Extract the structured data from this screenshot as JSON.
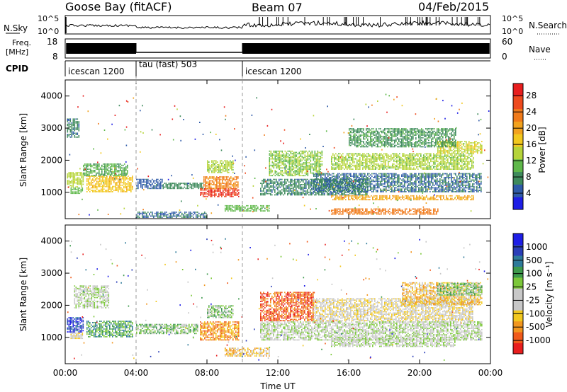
{
  "header": {
    "station": "Goose Bay (fitACF)",
    "beam": "Beam 07",
    "date": "04/Feb/2015"
  },
  "panels": {
    "nsky": {
      "label": "N.Sky",
      "tick_top": "10^5",
      "tick_bottom": "10^0",
      "right_label": "N.Search"
    },
    "freq": {
      "label_line1": "Freq.",
      "label_line2": "[MHz]",
      "left_ticks": [
        "18",
        "8"
      ],
      "right_ticks": [
        "60",
        "0"
      ],
      "right_label": "Nave"
    },
    "cpid": {
      "label": "CPID",
      "segments": [
        {
          "label": "icescan 1200",
          "start_hour": 0,
          "end_hour": 4
        },
        {
          "label": "tau (fast) 503",
          "start_hour": 4,
          "end_hour": 10
        },
        {
          "label": "icescan 1200",
          "start_hour": 10,
          "end_hour": 24
        }
      ]
    }
  },
  "chart_data": [
    {
      "type": "heatmap",
      "panel": "power",
      "ylabel": "Slant Range [km]",
      "ytick_labels": [
        "1000",
        "2000",
        "3000",
        "4000"
      ],
      "y_ticks": [
        1000,
        2000,
        3000,
        4000
      ],
      "ylim": [
        180,
        4500
      ],
      "xlim": [
        0,
        24
      ],
      "colorbar": {
        "label": "Power [dB]",
        "tick_labels": [
          "4",
          "8",
          "12",
          "16",
          "20",
          "24",
          "28"
        ],
        "ticks": [
          4,
          8,
          12,
          16,
          20,
          24,
          28
        ],
        "range": [
          0,
          31
        ],
        "colors": [
          "#1e1ee6",
          "#2e5aa8",
          "#3e8a5c",
          "#5fb84a",
          "#b6d43a",
          "#f2c81e",
          "#f2a21e",
          "#f07a1a",
          "#ee4a1e",
          "#e81e1e"
        ]
      },
      "regions": [
        {
          "x0": 0.1,
          "x1": 1.0,
          "y0": 1150,
          "y1": 1600,
          "value": 14
        },
        {
          "x0": 0.3,
          "x1": 1.0,
          "y0": 950,
          "y1": 1150,
          "value": 10
        },
        {
          "x0": 1.2,
          "x1": 3.8,
          "y0": 1000,
          "y1": 1500,
          "value": 18
        },
        {
          "x0": 1.0,
          "x1": 3.5,
          "y0": 1500,
          "y1": 1900,
          "value": 9
        },
        {
          "x0": 4.0,
          "x1": 5.5,
          "y0": 1100,
          "y1": 1400,
          "value": 4
        },
        {
          "x0": 5.5,
          "x1": 7.8,
          "y0": 1100,
          "y1": 1300,
          "value": 7
        },
        {
          "x0": 7.6,
          "x1": 9.8,
          "y0": 850,
          "y1": 1100,
          "value": 29
        },
        {
          "x0": 7.8,
          "x1": 9.8,
          "y0": 1100,
          "y1": 1500,
          "value": 23
        },
        {
          "x0": 8.0,
          "x1": 9.5,
          "y0": 1600,
          "y1": 2000,
          "value": 13
        },
        {
          "x0": 9.0,
          "x1": 11.5,
          "y0": 400,
          "y1": 600,
          "value": 10
        },
        {
          "x0": 4.0,
          "x1": 8.0,
          "y0": 200,
          "y1": 400,
          "value": 5
        },
        {
          "x0": 11.0,
          "x1": 17.0,
          "y0": 900,
          "y1": 1400,
          "value": 6
        },
        {
          "x0": 11.5,
          "x1": 14.5,
          "y0": 1500,
          "y1": 2300,
          "value": 12
        },
        {
          "x0": 14.0,
          "x1": 23.5,
          "y0": 1000,
          "y1": 1600,
          "value": 5
        },
        {
          "x0": 15.0,
          "x1": 23.0,
          "y0": 1700,
          "y1": 2200,
          "value": 13
        },
        {
          "x0": 15.0,
          "x1": 23.0,
          "y0": 750,
          "y1": 900,
          "value": 20
        },
        {
          "x0": 15.0,
          "x1": 21.0,
          "y0": 300,
          "y1": 500,
          "value": 24
        },
        {
          "x0": 21.0,
          "x1": 23.5,
          "y0": 2200,
          "y1": 2600,
          "value": 15
        },
        {
          "x0": 16.0,
          "x1": 22.0,
          "y0": 2400,
          "y1": 3000,
          "value": 8
        },
        {
          "x0": 0.1,
          "x1": 0.8,
          "y0": 2700,
          "y1": 3300,
          "value": 6
        }
      ]
    },
    {
      "type": "heatmap",
      "panel": "velocity",
      "ylabel": "Slant Range [km]",
      "ytick_labels": [
        "1000",
        "2000",
        "3000",
        "4000"
      ],
      "y_ticks": [
        1000,
        2000,
        3000,
        4000
      ],
      "ylim": [
        180,
        4500
      ],
      "xlim": [
        0,
        24
      ],
      "colorbar": {
        "label": "Velocity [m s⁻¹]",
        "tick_labels": [
          "1000",
          "500",
          "100",
          "25",
          "-25",
          "-100",
          "-500",
          "-1000"
        ],
        "colors": [
          "#e81e1e",
          "#f05a1a",
          "#f2961e",
          "#f2c81e",
          "#c8c8c8",
          "#c8c8c8",
          "#7cc83a",
          "#3e9a4c",
          "#2e7a9a",
          "#2a3eb8",
          "#1e1ee6"
        ]
      },
      "regions": [
        {
          "x0": 0.1,
          "x1": 1.0,
          "y0": 1150,
          "y1": 1600,
          "value": 9
        },
        {
          "x0": 1.2,
          "x1": 3.8,
          "y0": 1000,
          "y1": 1500,
          "value": 7
        },
        {
          "x0": 0.3,
          "x1": 1.0,
          "y0": 950,
          "y1": 1150,
          "value": 4
        },
        {
          "x0": 0.5,
          "x1": 2.5,
          "y0": 1900,
          "y1": 2600,
          "value": 5
        },
        {
          "x0": 4.0,
          "x1": 7.5,
          "y0": 1100,
          "y1": 1400,
          "value": 6
        },
        {
          "x0": 7.6,
          "x1": 9.8,
          "y0": 900,
          "y1": 1500,
          "value": 2
        },
        {
          "x0": 8.0,
          "x1": 9.5,
          "y0": 1600,
          "y1": 2000,
          "value": 6
        },
        {
          "x0": 9.0,
          "x1": 11.5,
          "y0": 400,
          "y1": 650,
          "value": 3
        },
        {
          "x0": 11.0,
          "x1": 14.0,
          "y0": 1500,
          "y1": 2400,
          "value": 1
        },
        {
          "x0": 11.0,
          "x1": 23.5,
          "y0": 900,
          "y1": 1500,
          "value": 5
        },
        {
          "x0": 14.0,
          "x1": 23.0,
          "y0": 1500,
          "y1": 2200,
          "value": 4
        },
        {
          "x0": 19.0,
          "x1": 23.5,
          "y0": 2000,
          "y1": 2700,
          "value": 3
        },
        {
          "x0": 15.0,
          "x1": 22.0,
          "y0": 700,
          "y1": 950,
          "value": 5
        },
        {
          "x0": 21.0,
          "x1": 23.5,
          "y0": 2300,
          "y1": 2700,
          "value": 6
        }
      ]
    }
  ],
  "x_axis": {
    "label": "Time UT",
    "tick_labels": [
      "00:00",
      "04:00",
      "08:00",
      "12:00",
      "16:00",
      "20:00",
      "00:00"
    ],
    "ticks": [
      0,
      4,
      8,
      12,
      16,
      20,
      24
    ],
    "range": [
      0,
      24
    ],
    "dashed_markers": [
      4,
      10
    ]
  }
}
